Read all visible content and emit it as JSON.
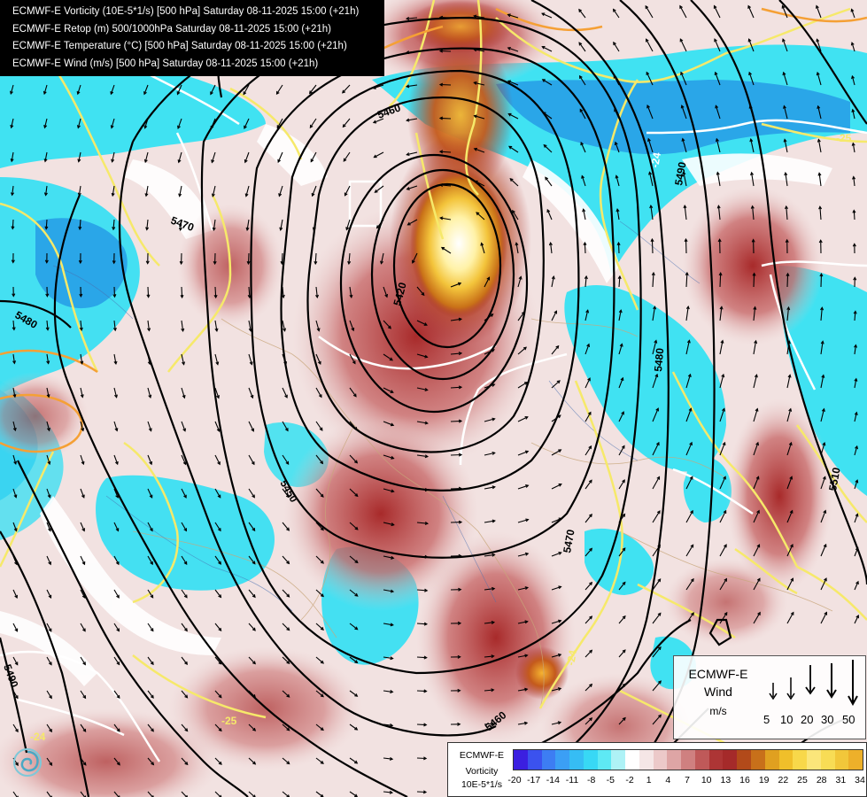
{
  "title_lines": [
    "ECMWF-E Vorticity (10E-5*1/s) [500 hPa] Saturday 08-11-2025 15:00 (+21h)",
    "ECMWF-E Retop (m) 500/1000hPa Saturday 08-11-2025 15:00 (+21h)",
    "ECMWF-E Temperature (°C) [500 hPa] Saturday 08-11-2025 15:00 (+21h)",
    "ECMWF-E Wind (m/s) [500 hPa] Saturday 08-11-2025 15:00 (+21h)"
  ],
  "contour_labels": [
    "5460",
    "5470",
    "5480",
    "5420",
    "5450",
    "5490",
    "5480",
    "5470",
    "5510",
    "5460",
    "5490"
  ],
  "temperature_labels": [
    "-25",
    "-24",
    "-24",
    "-25",
    "-24"
  ],
  "colors": {
    "cyan": "#38e6f2",
    "blue": "#29a3e8",
    "red": "#a52a2a",
    "orange": "#f0a020",
    "yellow": "#ffe46a",
    "temp_yellow": "#f6e96a",
    "temp_orange": "#f5a035"
  },
  "wind_legend": {
    "model": "ECMWF-E",
    "title": "Wind",
    "unit": "m/s",
    "scale": [
      "5",
      "10",
      "20",
      "30",
      "50"
    ]
  },
  "vorticity_legend": {
    "model": "ECMWF-E",
    "title": "Vorticity",
    "unit": "10E-5*1/s",
    "ticks": [
      "-20",
      "-17",
      "-14",
      "-11",
      "-8",
      "-5",
      "-2",
      "1",
      "4",
      "7",
      "10",
      "13",
      "16",
      "19",
      "22",
      "25",
      "28",
      "31",
      "34"
    ],
    "colors": [
      "#3b1fe0",
      "#3b52ee",
      "#3d7df3",
      "#3b9ff5",
      "#36bdf4",
      "#38d8f5",
      "#5ee9f4",
      "#aef2f6",
      "#ffffff",
      "#f5e6e6",
      "#ecc9c9",
      "#dea5a5",
      "#cf8080",
      "#bf5959",
      "#ad3535",
      "#a52a2a",
      "#b24a1a",
      "#c8701a",
      "#e0a020",
      "#f0bf2a",
      "#f8d84a",
      "#fbe67a",
      "#f8dc55",
      "#f2c73a",
      "#edb02a"
    ]
  },
  "logo": "ecmwf-swirl-icon"
}
